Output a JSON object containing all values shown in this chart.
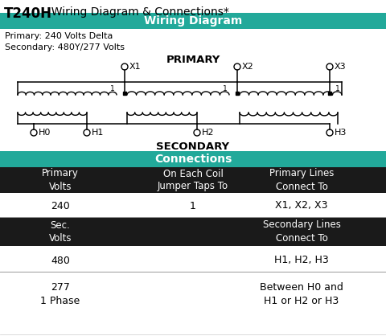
{
  "title_bold": "T240H",
  "title_rest": "  Wiring Diagram & Connections*",
  "wiring_header": "Wiring Diagram",
  "primary_text": "Primary: 240 Volts Delta\nSecondary: 480Y/277 Volts",
  "primary_label": "PRIMARY",
  "secondary_label": "SECONDARY",
  "connections_header": "Connections",
  "teal_color": "#22a99a",
  "black_color": "#1a1a1a",
  "white_color": "#ffffff",
  "col1_header": "Primary\nVolts",
  "col2_header": "On Each Coil\nJumper Taps To",
  "col3_header": "Primary Lines\nConnect To",
  "row1": [
    "240",
    "1",
    "X1, X2, X3"
  ],
  "col1_header2": "Sec.\nVolts",
  "col3_header2": "Secondary Lines\nConnect To",
  "row2": [
    "480",
    "",
    "H1, H2, H3"
  ],
  "row3_col1": "277\n1 Phase",
  "row3_col3": "Between H0 and\nH1 or H2 or H3"
}
